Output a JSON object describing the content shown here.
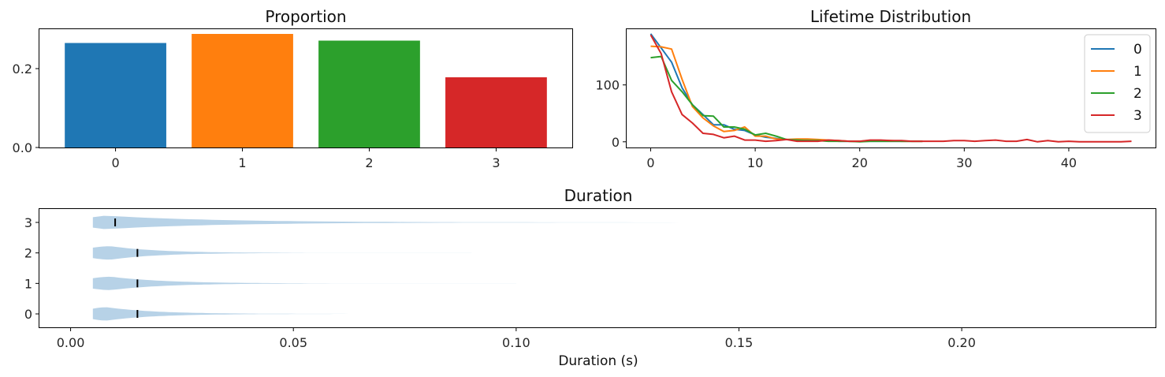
{
  "chart_data": [
    {
      "type": "bar",
      "title": "Proportion",
      "categories": [
        "0",
        "1",
        "2",
        "3"
      ],
      "values": [
        0.265,
        0.288,
        0.271,
        0.178
      ],
      "colors": [
        "#1f77b4",
        "#ff7f0e",
        "#2ca02c",
        "#d62728"
      ],
      "ylim": [
        0,
        0.3
      ],
      "yticks": [
        0.0,
        0.2
      ],
      "ytick_labels": [
        "0.0",
        "0.2"
      ],
      "grid": false
    },
    {
      "type": "line",
      "title": "Lifetime Distribution",
      "xlim": [
        -2.3,
        48.3
      ],
      "ylim": [
        -10,
        198
      ],
      "xticks": [
        0,
        10,
        20,
        30,
        40
      ],
      "xtick_labels": [
        "0",
        "10",
        "20",
        "30",
        "40"
      ],
      "yticks": [
        0,
        100
      ],
      "ytick_labels": [
        "0",
        "100"
      ],
      "legend_position": "top-right",
      "series": [
        {
          "name": "0",
          "color": "#1f77b4",
          "x": [
            0,
            1,
            2,
            3,
            4,
            5,
            6,
            7,
            8,
            9,
            10,
            11,
            12,
            13,
            14,
            15,
            16,
            17,
            18,
            19,
            20,
            21,
            22,
            23,
            24,
            25,
            26
          ],
          "y": [
            190,
            165,
            140,
            95,
            65,
            48,
            30,
            30,
            22,
            20,
            12,
            8,
            6,
            4,
            3,
            3,
            2,
            2,
            1,
            1,
            1,
            1,
            1,
            1,
            1,
            1,
            1
          ]
        },
        {
          "name": "1",
          "color": "#ff7f0e",
          "x": [
            0,
            1,
            2,
            3,
            4,
            5,
            6,
            7,
            8,
            9,
            10,
            11,
            12,
            13,
            14,
            15,
            16,
            17,
            18,
            19,
            20,
            21,
            22,
            23,
            24,
            25,
            26
          ],
          "y": [
            168,
            167,
            163,
            110,
            62,
            42,
            28,
            18,
            20,
            26,
            10,
            10,
            5,
            4,
            5,
            5,
            4,
            3,
            2,
            1,
            1,
            2,
            2,
            2,
            1,
            1,
            1
          ]
        },
        {
          "name": "2",
          "color": "#2ca02c",
          "x": [
            0,
            1,
            2,
            3,
            4,
            5,
            6,
            7,
            8,
            9,
            10,
            11,
            12,
            13,
            14,
            15,
            16,
            17,
            18,
            19,
            20,
            21,
            22,
            23,
            24,
            25,
            26
          ],
          "y": [
            148,
            150,
            108,
            88,
            65,
            46,
            45,
            26,
            26,
            22,
            12,
            15,
            10,
            4,
            3,
            2,
            2,
            1,
            1,
            1,
            0,
            1,
            1,
            1,
            1,
            1,
            1
          ]
        },
        {
          "name": "3",
          "color": "#d62728",
          "x": [
            0,
            1,
            2,
            3,
            4,
            5,
            6,
            7,
            8,
            9,
            10,
            11,
            12,
            13,
            14,
            15,
            16,
            17,
            18,
            19,
            20,
            21,
            22,
            23,
            24,
            25,
            26,
            27,
            28,
            29,
            30,
            31,
            32,
            33,
            34,
            35,
            36,
            37,
            38,
            39,
            40,
            41,
            42,
            43,
            44,
            45,
            46
          ],
          "y": [
            188,
            155,
            88,
            48,
            33,
            15,
            13,
            7,
            10,
            3,
            3,
            1,
            2,
            4,
            1,
            1,
            1,
            3,
            2,
            1,
            1,
            3,
            3,
            2,
            2,
            1,
            1,
            1,
            1,
            2,
            2,
            1,
            2,
            3,
            1,
            1,
            4,
            0,
            2,
            0,
            1,
            0,
            0,
            0,
            0,
            0,
            1
          ]
        }
      ],
      "grid": false
    },
    {
      "type": "violin",
      "title": "Duration",
      "xlabel": "Duration (s)",
      "xlim": [
        -0.007,
        0.2435
      ],
      "xticks": [
        0.0,
        0.05,
        0.1,
        0.15,
        0.2
      ],
      "xtick_labels": [
        "0.00",
        "0.05",
        "0.10",
        "0.15",
        "0.20"
      ],
      "categories": [
        "0",
        "1",
        "2",
        "3"
      ],
      "violin_color": "#b7d2e7",
      "median_marker_color": "#000000",
      "violins": [
        {
          "category": "0",
          "min": 0.005,
          "max": 0.09,
          "median": 0.015,
          "peak": 0.008
        },
        {
          "category": "1",
          "min": 0.005,
          "max": 0.1,
          "median": 0.015,
          "peak": 0.009
        },
        {
          "category": "2",
          "min": 0.005,
          "max": 0.09,
          "median": 0.015,
          "peak": 0.009
        },
        {
          "category": "3",
          "min": 0.005,
          "max": 0.2,
          "median": 0.01,
          "peak": 0.008
        }
      ],
      "grid": false
    }
  ]
}
